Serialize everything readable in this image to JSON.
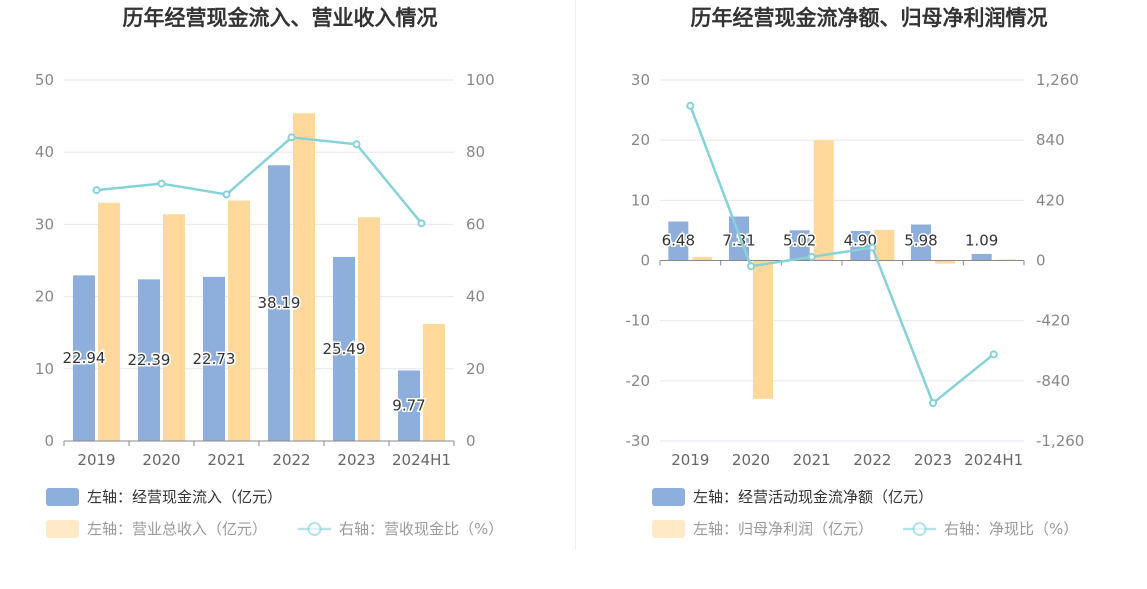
{
  "colors": {
    "bar_blue": "#8eaedc",
    "bar_yellow": "#ffd99b",
    "line_cyan": "#86d2d8",
    "grid": "#e4e7f0",
    "axis": "#888888"
  },
  "chart_data": [
    {
      "type": "bar",
      "title": "历年经营现金流入、营业收入情况",
      "categories": [
        "2019",
        "2020",
        "2021",
        "2022",
        "2023",
        "2024H1"
      ],
      "left_axis": {
        "ylim": [
          0,
          50
        ],
        "ticks": [
          "0",
          "10",
          "20",
          "30",
          "40",
          "50"
        ],
        "tick_values": [
          0,
          10,
          20,
          30,
          40,
          50
        ]
      },
      "right_axis": {
        "ylim": [
          0,
          100
        ],
        "ticks": [
          "0",
          "20",
          "40",
          "60",
          "80",
          "100"
        ],
        "tick_values": [
          0,
          20,
          40,
          60,
          80,
          100
        ]
      },
      "series": [
        {
          "name": "左轴：经营现金流入（亿元）",
          "kind": "bar",
          "axis": "left",
          "color": "#8eaedc",
          "values": [
            22.94,
            22.39,
            22.73,
            38.19,
            25.49,
            9.77
          ],
          "labels": [
            "22.94",
            "22.39",
            "22.73",
            "38.19",
            "25.49",
            "9.77"
          ]
        },
        {
          "name": "左轴：营业总收入（亿元）",
          "kind": "bar",
          "axis": "left",
          "color": "#ffd99b",
          "values": [
            33.0,
            31.4,
            33.3,
            45.4,
            31.0,
            16.2
          ]
        },
        {
          "name": "右轴：营收现金比（%）",
          "kind": "line",
          "axis": "right",
          "color": "#86d2d8",
          "values": [
            69.5,
            71.3,
            68.3,
            84.1,
            82.2,
            60.3
          ]
        }
      ],
      "grid": true,
      "legend_position": "bottom-left"
    },
    {
      "type": "bar",
      "title": "历年经营现金流净额、归母净利润情况",
      "categories": [
        "2019",
        "2020",
        "2021",
        "2022",
        "2023",
        "2024H1"
      ],
      "left_axis": {
        "ylim": [
          -30,
          30
        ],
        "ticks": [
          "-30",
          "-20",
          "-10",
          "0",
          "10",
          "20",
          "30"
        ],
        "tick_values": [
          -30,
          -20,
          -10,
          0,
          10,
          20,
          30
        ]
      },
      "right_axis": {
        "ylim": [
          -1260,
          1260
        ],
        "ticks": [
          "-1,260",
          "-840",
          "-420",
          "0",
          "420",
          "840",
          "1,260"
        ],
        "tick_values": [
          -1260,
          -840,
          -420,
          0,
          420,
          840,
          1260
        ]
      },
      "series": [
        {
          "name": "左轴：经营活动现金流净额（亿元）",
          "kind": "bar",
          "axis": "left",
          "color": "#8eaedc",
          "values": [
            6.48,
            7.31,
            5.02,
            4.9,
            5.98,
            1.09
          ],
          "labels": [
            "6.48",
            "7.31",
            "5.02",
            "4.90",
            "5.98",
            "1.09"
          ]
        },
        {
          "name": "左轴：归母净利润（亿元）",
          "kind": "bar",
          "axis": "left",
          "color": "#ffd99b",
          "values": [
            0.6,
            -23.0,
            20.0,
            5.1,
            -0.5,
            0.15
          ]
        },
        {
          "name": "右轴：净现比（%）",
          "kind": "line",
          "axis": "right",
          "color": "#86d2d8",
          "values": [
            1080,
            -40,
            25,
            90,
            -995,
            -655
          ]
        }
      ],
      "grid": true,
      "legend_position": "bottom-left"
    }
  ]
}
